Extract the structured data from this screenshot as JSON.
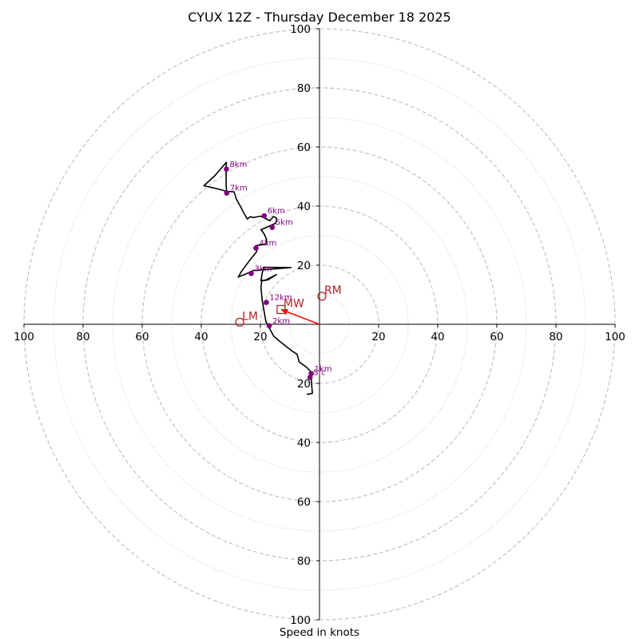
{
  "chart_data": {
    "type": "scatter",
    "subtype": "hodograph",
    "title": "CYUX 12Z - Thursday December 18 2025",
    "xlabel": "Speed in knots",
    "ylabel": "",
    "xlim": [
      -100,
      100
    ],
    "ylim": [
      -100,
      100
    ],
    "major_rings": [
      20,
      40,
      60,
      80,
      100
    ],
    "minor_rings": [
      10,
      30,
      50,
      70,
      90
    ],
    "x_ticks": [
      {
        "value": -100,
        "label": "100"
      },
      {
        "value": -80,
        "label": "80"
      },
      {
        "value": -60,
        "label": "60"
      },
      {
        "value": -40,
        "label": "40"
      },
      {
        "value": -20,
        "label": "20"
      },
      {
        "value": 20,
        "label": "20"
      },
      {
        "value": 40,
        "label": "40"
      },
      {
        "value": 60,
        "label": "60"
      },
      {
        "value": 80,
        "label": "80"
      },
      {
        "value": 100,
        "label": "100"
      }
    ],
    "y_ticks": [
      {
        "value": 100,
        "label": "100"
      },
      {
        "value": 80,
        "label": "80"
      },
      {
        "value": 60,
        "label": "60"
      },
      {
        "value": 40,
        "label": "40"
      },
      {
        "value": 20,
        "label": "20"
      },
      {
        "value": -20,
        "label": "20"
      },
      {
        "value": -40,
        "label": "40"
      },
      {
        "value": -60,
        "label": "60"
      },
      {
        "value": -80,
        "label": "80"
      },
      {
        "value": -100,
        "label": "100"
      }
    ],
    "hodograph_trace": [
      [
        -4.3,
        -23.7
      ],
      [
        -2.4,
        -23.4
      ],
      [
        -2.7,
        -19.8
      ],
      [
        -2.9,
        -17.0
      ],
      [
        -2.7,
        -16.3
      ],
      [
        -4.3,
        -14.6
      ],
      [
        -6.9,
        -12.7
      ],
      [
        -7.6,
        -10.1
      ],
      [
        -9.2,
        -9.1
      ],
      [
        -13.4,
        -5.8
      ],
      [
        -15.5,
        -4.0
      ],
      [
        -16.6,
        -2.0
      ],
      [
        -17.2,
        -0.8
      ],
      [
        -18.1,
        0.9
      ],
      [
        -18.4,
        2.4
      ],
      [
        -18.8,
        4.8
      ],
      [
        -19.4,
        8.2
      ],
      [
        -19.8,
        12.6
      ],
      [
        -19.5,
        14.8
      ],
      [
        -18.1,
        15.0
      ],
      [
        -14.6,
        16.8
      ],
      [
        -17.5,
        15.0
      ],
      [
        -19.0,
        14.8
      ],
      [
        -19.8,
        14.7
      ],
      [
        -19.4,
        17.3
      ],
      [
        -18.8,
        19.3
      ],
      [
        -9.6,
        19.2
      ],
      [
        -19.8,
        18.4
      ],
      [
        -22.4,
        18.2
      ],
      [
        -24.7,
        17.1
      ],
      [
        -27.5,
        16.0
      ],
      [
        -26.4,
        17.9
      ],
      [
        -23.8,
        21.4
      ],
      [
        -21.2,
        24.7
      ],
      [
        -21.5,
        26.6
      ],
      [
        -17.8,
        27.2
      ],
      [
        -18.0,
        29.0
      ],
      [
        -18.8,
        30.7
      ],
      [
        -19.8,
        32.0
      ],
      [
        -16.4,
        33.5
      ],
      [
        -14.8,
        34.2
      ],
      [
        -14.5,
        35.8
      ],
      [
        -15.5,
        36.5
      ],
      [
        -16.8,
        35.0
      ],
      [
        -18.6,
        36.0
      ],
      [
        -20.0,
        36.6
      ],
      [
        -22.3,
        36.1
      ],
      [
        -23.4,
        36.4
      ],
      [
        -24.4,
        35.6
      ],
      [
        -25.8,
        38.0
      ],
      [
        -26.5,
        39.5
      ],
      [
        -27.5,
        41.2
      ],
      [
        -28.2,
        42.5
      ],
      [
        -28.9,
        44.8
      ],
      [
        -31.5,
        45.0
      ],
      [
        -34.0,
        45.7
      ],
      [
        -36.5,
        46.3
      ],
      [
        -39.1,
        46.9
      ],
      [
        -35.4,
        50.3
      ],
      [
        -31.5,
        54.8
      ],
      [
        -31.6,
        52.5
      ],
      [
        -31.6,
        50.0
      ],
      [
        -31.6,
        47.0
      ],
      [
        -31.4,
        44.4
      ]
    ],
    "height_markers": [
      {
        "label": "Sfc",
        "u": -3.2,
        "v": -18.0
      },
      {
        "label": "1km",
        "u": -2.8,
        "v": -16.7
      },
      {
        "label": "2km",
        "u": -17.0,
        "v": -0.5
      },
      {
        "label": "3km",
        "u": -23.1,
        "v": 17.2
      },
      {
        "label": "4km",
        "u": -21.5,
        "v": 25.8
      },
      {
        "label": "5km",
        "u": -16.0,
        "v": 32.8
      },
      {
        "label": "6km",
        "u": -18.7,
        "v": 36.7
      },
      {
        "label": "7km",
        "u": -31.4,
        "v": 44.4
      },
      {
        "label": "8km",
        "u": -31.5,
        "v": 52.5
      },
      {
        "label": "12km",
        "u": -18.0,
        "v": 7.4
      }
    ],
    "storm_motion": [
      {
        "label": "RM",
        "u": 0.8,
        "v": 9.5,
        "marker": "circle"
      },
      {
        "label": "LM",
        "u": -27.0,
        "v": 0.7,
        "marker": "circle"
      },
      {
        "label": "MW",
        "u": -13.0,
        "v": 5.0,
        "marker": "square"
      }
    ],
    "mean_wind_vector": {
      "from": [
        0,
        0
      ],
      "to": [
        -13.0,
        5.0
      ]
    },
    "colors": {
      "trace": "#000000",
      "height_marker": "#800080",
      "storm_marker": "#b22222",
      "vector": "#ff0000",
      "grid": "#bdbdbd"
    }
  }
}
